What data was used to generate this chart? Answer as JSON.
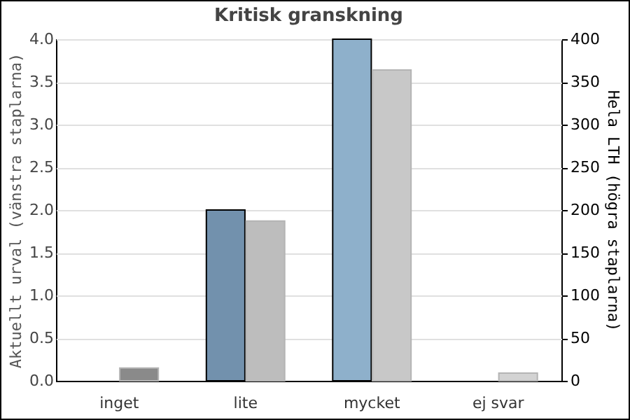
{
  "chart_data": {
    "type": "bar",
    "title": "Kritisk granskning",
    "categories": [
      "inget",
      "lite",
      "mycket",
      "ej svar"
    ],
    "ylabel": "Aktuellt urval (vänstra staplarna)",
    "y2label": "Hela LTH (högra staplarna)",
    "series": [
      {
        "colors": [
          "#7291ad",
          "#7291ad",
          "#8eb0cb",
          "#8eb0cb"
        ],
        "values": [
          null,
          2,
          4,
          null
        ]
      },
      {
        "axis": "y2",
        "colors": [
          "#8a8a8a",
          "#bdbdbd",
          "#c8c8c8",
          "#d3d3d3"
        ],
        "values": [
          15,
          187,
          364,
          9
        ]
      }
    ],
    "ylim": [
      0,
      4
    ],
    "yticks": [
      {
        "value": 0,
        "label": "0.0"
      },
      {
        "value": 0.5,
        "label": "0.5"
      },
      {
        "value": 1,
        "label": "1.0"
      },
      {
        "value": 1.5,
        "label": "1.5"
      },
      {
        "value": 2,
        "label": "2.0"
      },
      {
        "value": 2.5,
        "label": "2.5"
      },
      {
        "value": 3,
        "label": "3.0"
      },
      {
        "value": 3.5,
        "label": "3.5"
      },
      {
        "value": 4,
        "label": "4.0"
      }
    ],
    "y2lim": [
      0,
      400
    ],
    "y2ticks": [
      0,
      50,
      100,
      150,
      200,
      250,
      300,
      350,
      400
    ],
    "grid": "y"
  }
}
